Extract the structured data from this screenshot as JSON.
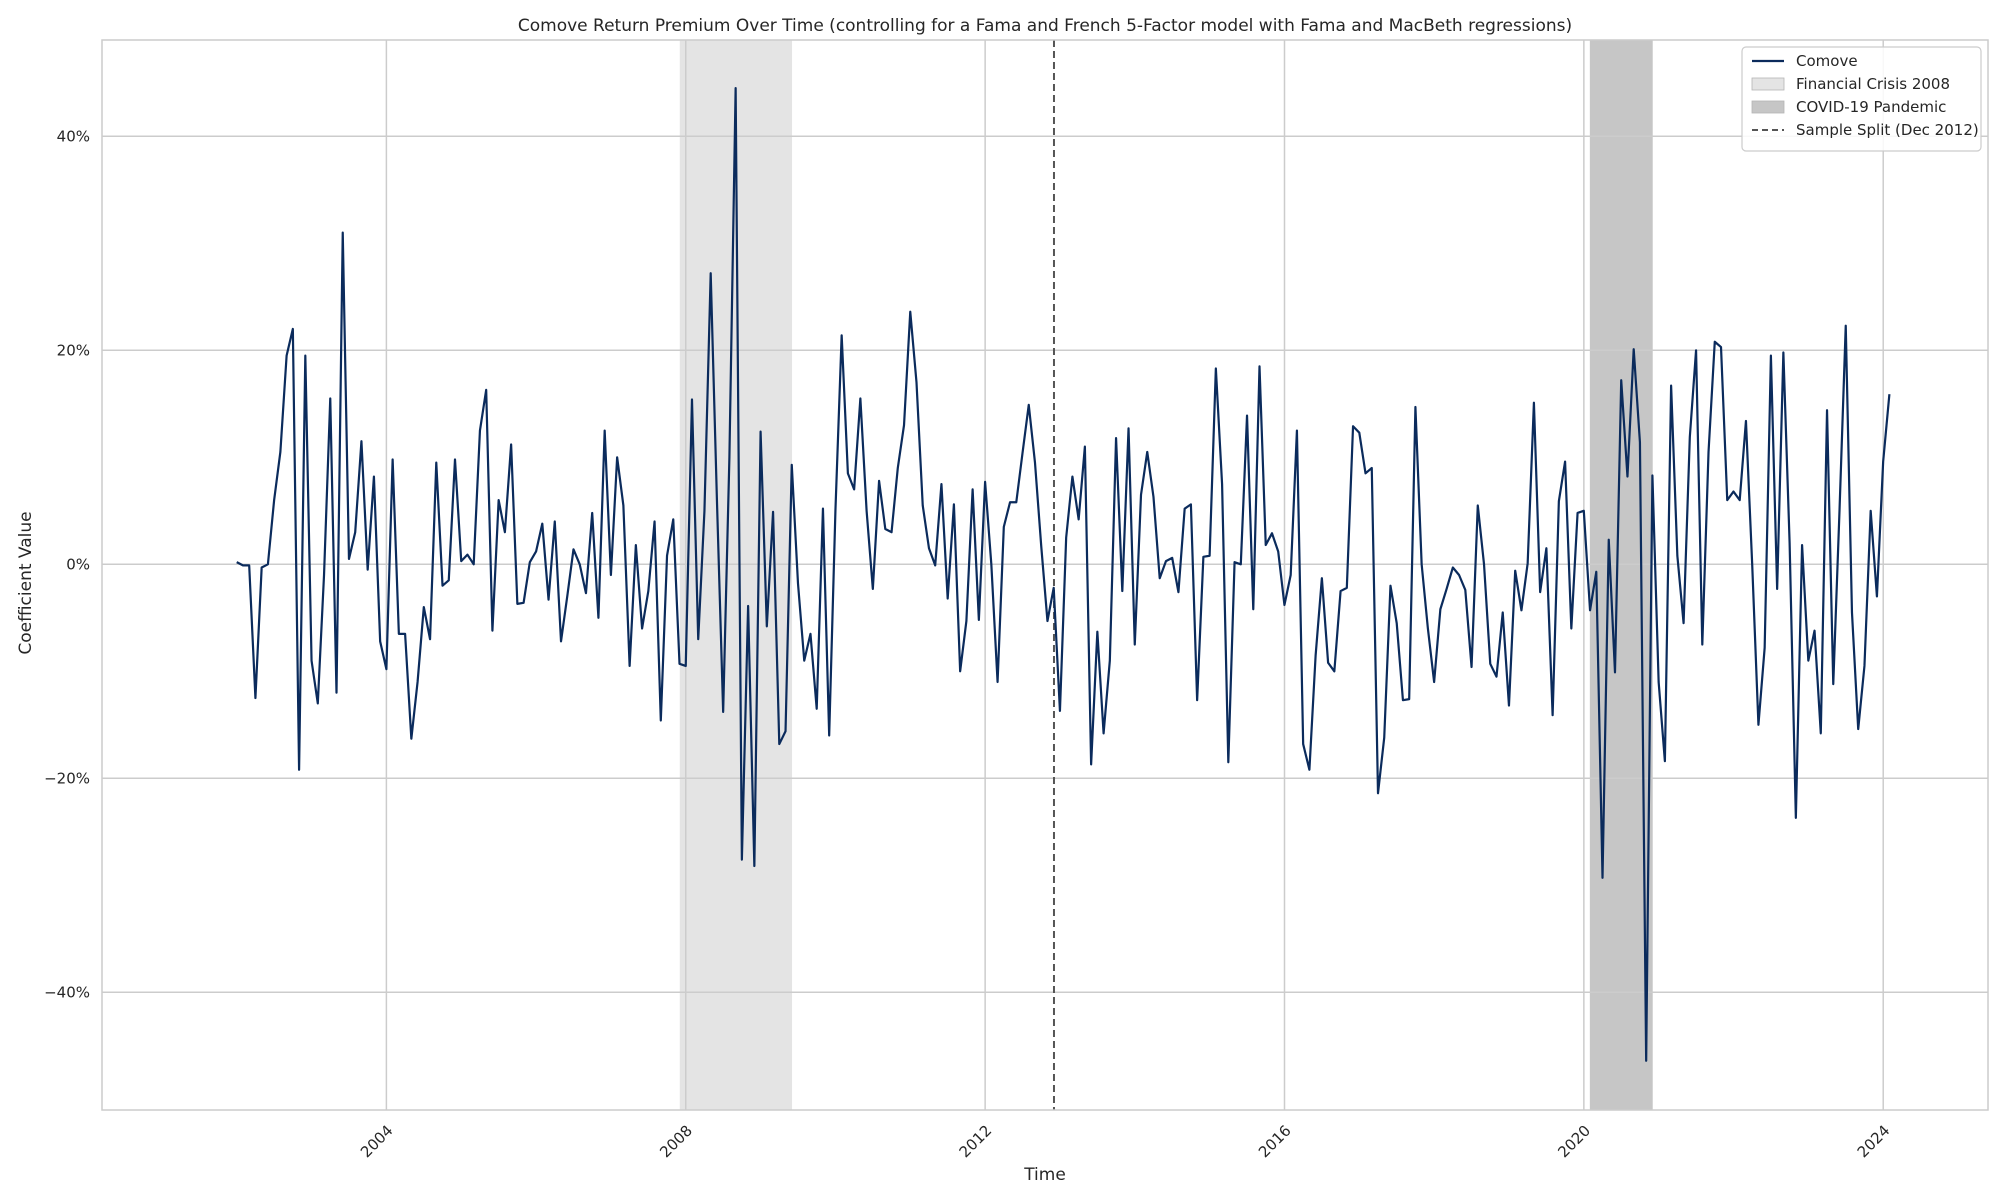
{
  "chart_data": {
    "type": "line",
    "title": "Comove Return Premium Over Time (controlling for a Fama and French 5-Factor model with Fama and MacBeth regressions)",
    "xlabel": "Time",
    "ylabel": "Coefficient Value",
    "x_ticks": [
      2004,
      2008,
      2012,
      2016,
      2020,
      2024
    ],
    "x_tick_labels": [
      "2004",
      "2008",
      "2012",
      "2016",
      "2020",
      "2024"
    ],
    "xlim": [
      2000.2,
      2025.4
    ],
    "y_ticks": [
      -40,
      -20,
      0,
      20,
      40
    ],
    "y_tick_labels": [
      "−40%",
      "−20%",
      "0%",
      "20%",
      "40%"
    ],
    "ylim": [
      -51,
      49
    ],
    "grid": true,
    "legend_position": "top-right",
    "x_start": 2002.0,
    "x_step": 0.08333,
    "series": [
      {
        "name": "Comove",
        "color": "#0b2b5c",
        "values": [
          0.2,
          -0.1,
          -0.1,
          -12.5,
          -0.3,
          0.0,
          6.0,
          10.5,
          19.5,
          22.0,
          -19.2,
          19.5,
          -9.0,
          -13.0,
          -1.0,
          15.5,
          -12.0,
          31.0,
          0.5,
          3.0,
          11.5,
          -0.5,
          8.2,
          -7.2,
          -9.8,
          9.8,
          -6.5,
          -6.5,
          -16.3,
          -11.0,
          -4.0,
          -7.0,
          9.5,
          -2.0,
          -1.5,
          9.8,
          0.3,
          0.9,
          0.0,
          12.5,
          16.3,
          -6.2,
          6.0,
          3.0,
          11.2,
          -3.7,
          -3.6,
          0.2,
          1.2,
          3.8,
          -3.3,
          4.0,
          -7.2,
          -3.0,
          1.4,
          0.0,
          -2.7,
          4.8,
          -5.0,
          12.5,
          -1.0,
          10.0,
          5.5,
          -9.5,
          1.8,
          -6.0,
          -2.5,
          4.0,
          -14.6,
          0.8,
          4.2,
          -9.3,
          -9.5,
          15.4,
          -7.0,
          5.0,
          27.2,
          6.0,
          -13.8,
          10.0,
          44.5,
          -27.6,
          -3.9,
          -28.2,
          12.4,
          -5.8,
          4.9,
          -16.8,
          -15.6,
          9.3,
          -1.8,
          -9.0,
          -6.5,
          -13.5,
          5.2,
          -16.0,
          5.0,
          21.4,
          8.5,
          7.0,
          15.5,
          5.0,
          -2.3,
          7.8,
          3.3,
          3.0,
          9.0,
          13.0,
          23.6,
          17.0,
          5.5,
          1.5,
          -0.1,
          7.5,
          -3.2,
          5.6,
          -10.0,
          -5.3,
          7.0,
          -5.2,
          7.7,
          0.0,
          -11.0,
          3.5,
          5.8,
          5.8,
          10.4,
          14.9,
          9.5,
          1.7,
          -5.3,
          -2.2,
          -13.7,
          2.5,
          8.2,
          4.2,
          11.0,
          -18.7,
          -6.3,
          -15.8,
          -9.0,
          11.8,
          -2.5,
          12.7,
          -7.5,
          6.5,
          10.5,
          6.3,
          -1.3,
          0.3,
          0.6,
          -2.6,
          5.2,
          5.6,
          -12.7,
          0.7,
          0.8,
          18.3,
          7.5,
          -18.5,
          0.2,
          0.0,
          13.9,
          -4.2,
          18.5,
          1.8,
          2.9,
          1.2,
          -3.8,
          -1.0,
          12.5,
          -16.8,
          -19.2,
          -8.5,
          -1.3,
          -9.2,
          -10.0,
          -2.5,
          -2.2,
          12.9,
          12.3,
          8.5,
          9.0,
          -21.4,
          -16.2,
          -2.0,
          -5.5,
          -12.7,
          -12.6,
          14.7,
          0.0,
          -6.0,
          -11.0,
          -4.2,
          -2.3,
          -0.3,
          -1.0,
          -2.4,
          -9.6,
          5.5,
          0.0,
          -9.3,
          -10.5,
          -4.5,
          -13.2,
          -0.6,
          -4.3,
          0.1,
          15.1,
          -2.6,
          1.5,
          -14.1,
          5.9,
          9.6,
          -6.0,
          4.8,
          5.0,
          -4.3,
          -0.7,
          -29.3,
          2.3,
          -10.1,
          17.2,
          8.2,
          20.1,
          11.4,
          -46.4,
          8.3,
          -11.0,
          -18.4,
          16.7,
          0.8,
          -5.5,
          11.9,
          20.0,
          -7.5,
          10.5,
          20.8,
          20.3,
          6.0,
          6.8,
          6.0,
          13.4,
          0.0,
          -15.0,
          -7.8,
          19.5,
          -2.3,
          19.8,
          2.0,
          -23.7,
          1.8,
          -9.0,
          -6.2,
          -15.8,
          14.4,
          -11.2,
          5.0,
          22.3,
          -4.5,
          -15.4,
          -9.5,
          5.0,
          -3.0,
          9.6,
          15.9
        ]
      }
    ],
    "shaded_regions": [
      {
        "name": "Financial Crisis 2008",
        "x_start": 2007.92,
        "x_end": 2009.42,
        "color": "#e4e4e4"
      },
      {
        "name": "COVID-19 Pandemic",
        "x_start": 2020.08,
        "x_end": 2020.92,
        "color": "#c6c6c6"
      }
    ],
    "vertical_lines": [
      {
        "name": "Sample Split (Dec 2012)",
        "x": 2012.92,
        "color": "#555555",
        "style": "dashed"
      }
    ],
    "legend": [
      {
        "label": "Comove",
        "kind": "line",
        "color": "#0b2b5c"
      },
      {
        "label": "Financial Crisis 2008",
        "kind": "patch",
        "color": "#e4e4e4"
      },
      {
        "label": "COVID-19 Pandemic",
        "kind": "patch",
        "color": "#c6c6c6"
      },
      {
        "label": "Sample Split (Dec 2012)",
        "kind": "dashed",
        "color": "#555555"
      }
    ]
  }
}
